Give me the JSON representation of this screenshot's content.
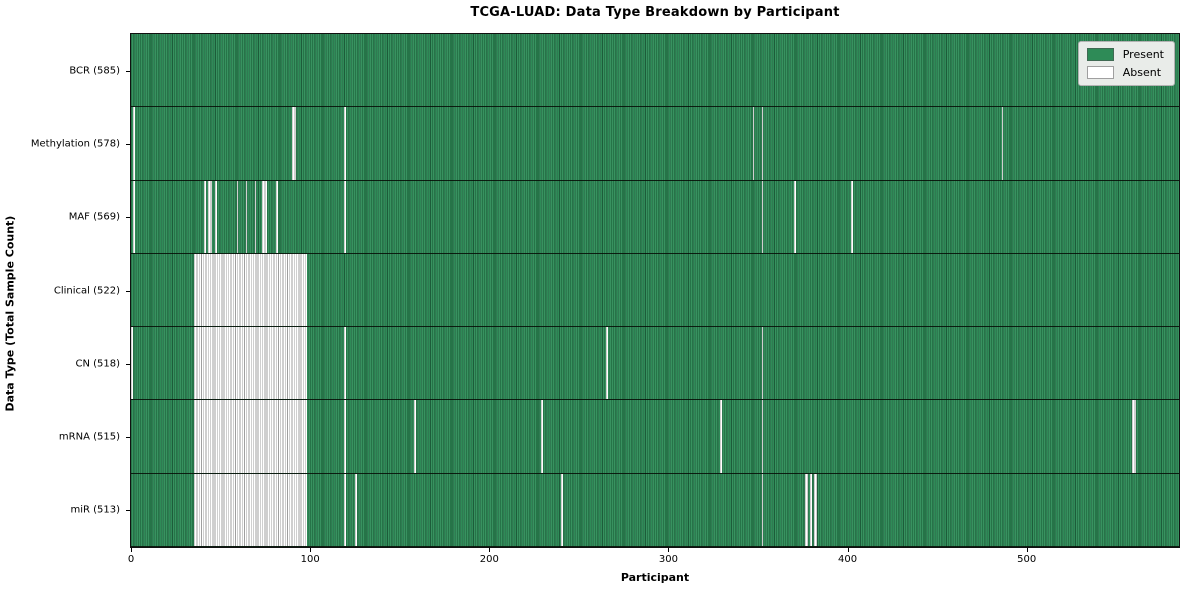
{
  "figure": {
    "title": "TCGA-LUAD: Data Type Breakdown by Participant",
    "xlabel": "Participant",
    "ylabel": "Data Type (Total Sample Count)"
  },
  "legend": {
    "present_label": "Present",
    "absent_label": "Absent"
  },
  "colors": {
    "present": "#2e8b57",
    "present_light": "#43996a",
    "present_edge": "#1d5c3a",
    "absent": "#ffffff",
    "absent_edge": "#9f9f9f",
    "legend_bg": "#e9ece9",
    "legend_border": "#b3b3b3"
  },
  "chart_data": {
    "type": "heatmap",
    "title": "TCGA-LUAD: Data Type Breakdown by Participant",
    "xlabel": "Participant",
    "ylabel": "Data Type (Total Sample Count)",
    "legend_entries": [
      "Present",
      "Absent"
    ],
    "legend_position": "upper right",
    "n_participants": 585,
    "x_ticks": [
      0,
      100,
      200,
      300,
      400,
      500
    ],
    "x_range": [
      0,
      585
    ],
    "rows": [
      {
        "label": "BCR (585)",
        "data_type": "BCR",
        "present_count": 585,
        "absent_count": 0,
        "absent_ranges": []
      },
      {
        "label": "Methylation (578)",
        "data_type": "Methylation",
        "present_count": 578,
        "absent_count": 7,
        "absent_ranges": [
          [
            1,
            1
          ],
          [
            90,
            91
          ],
          [
            119,
            119
          ],
          [
            347,
            347
          ],
          [
            352,
            352
          ],
          [
            486,
            486
          ]
        ]
      },
      {
        "label": "MAF (569)",
        "data_type": "MAF",
        "present_count": 569,
        "absent_count": 16,
        "absent_ranges": [
          [
            1,
            1
          ],
          [
            41,
            41
          ],
          [
            43,
            44
          ],
          [
            47,
            47
          ],
          [
            59,
            59
          ],
          [
            64,
            64
          ],
          [
            69,
            69
          ],
          [
            73,
            75
          ],
          [
            81,
            81
          ],
          [
            119,
            119
          ],
          [
            352,
            352
          ],
          [
            370,
            370
          ],
          [
            402,
            402
          ]
        ]
      },
      {
        "label": "Clinical (522)",
        "data_type": "Clinical",
        "present_count": 522,
        "absent_count": 63,
        "absent_ranges": [
          [
            35,
            97
          ]
        ]
      },
      {
        "label": "CN (518)",
        "data_type": "CN",
        "present_count": 518,
        "absent_count": 67,
        "absent_ranges": [
          [
            0,
            0
          ],
          [
            35,
            97
          ],
          [
            119,
            119
          ],
          [
            265,
            265
          ],
          [
            352,
            352
          ]
        ]
      },
      {
        "label": "mRNA (515)",
        "data_type": "mRNA",
        "present_count": 515,
        "absent_count": 70,
        "absent_ranges": [
          [
            35,
            97
          ],
          [
            119,
            119
          ],
          [
            158,
            158
          ],
          [
            229,
            229
          ],
          [
            329,
            329
          ],
          [
            352,
            352
          ],
          [
            559,
            560
          ]
        ]
      },
      {
        "label": "miR (513)",
        "data_type": "miR",
        "present_count": 513,
        "absent_count": 72,
        "absent_ranges": [
          [
            35,
            97
          ],
          [
            119,
            119
          ],
          [
            125,
            125
          ],
          [
            240,
            240
          ],
          [
            352,
            352
          ],
          [
            376,
            377
          ],
          [
            379,
            379
          ],
          [
            381,
            382
          ]
        ]
      }
    ]
  }
}
